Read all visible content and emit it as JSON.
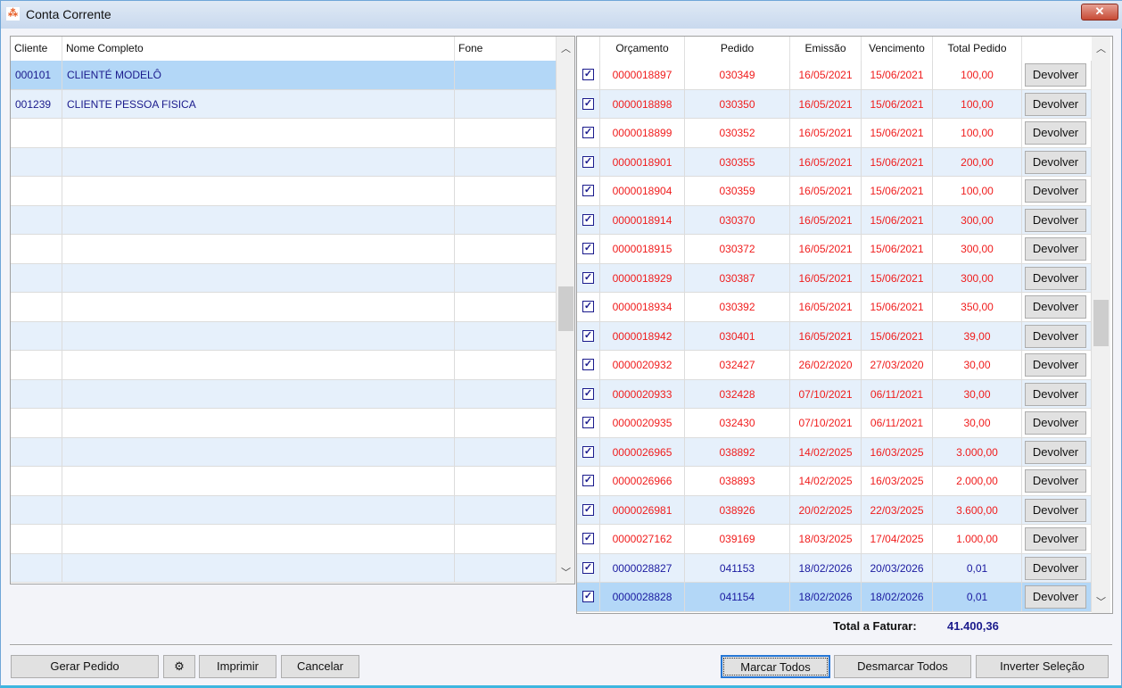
{
  "window": {
    "title": "Conta Corrente",
    "close_label": "✕"
  },
  "clients": {
    "headers": [
      "Cliente",
      "Nome Completo",
      "Fone"
    ],
    "rows": [
      {
        "code": "000101",
        "name": "CLIENTÉ MODELÔ",
        "phone": "",
        "selected": true
      },
      {
        "code": "001239",
        "name": "CLIENTE PESSOA FISICA",
        "phone": "",
        "selected": false
      }
    ],
    "empty_rows": 16
  },
  "orders": {
    "headers": [
      "",
      "Orçamento",
      "Pedido",
      "Emissão",
      "Vencimento",
      "Total Pedido",
      ""
    ],
    "button_label": "Devolver",
    "colors": {
      "red": "#f01c1c",
      "blue": "#1a1aa0"
    },
    "rows": [
      {
        "checked": true,
        "orcamento": "0000018897",
        "pedido": "030349",
        "emissao": "16/05/2021",
        "vencimento": "15/06/2021",
        "total": "100,00",
        "color": "red"
      },
      {
        "checked": true,
        "orcamento": "0000018898",
        "pedido": "030350",
        "emissao": "16/05/2021",
        "vencimento": "15/06/2021",
        "total": "100,00",
        "color": "red"
      },
      {
        "checked": true,
        "orcamento": "0000018899",
        "pedido": "030352",
        "emissao": "16/05/2021",
        "vencimento": "15/06/2021",
        "total": "100,00",
        "color": "red"
      },
      {
        "checked": true,
        "orcamento": "0000018901",
        "pedido": "030355",
        "emissao": "16/05/2021",
        "vencimento": "15/06/2021",
        "total": "200,00",
        "color": "red"
      },
      {
        "checked": true,
        "orcamento": "0000018904",
        "pedido": "030359",
        "emissao": "16/05/2021",
        "vencimento": "15/06/2021",
        "total": "100,00",
        "color": "red"
      },
      {
        "checked": true,
        "orcamento": "0000018914",
        "pedido": "030370",
        "emissao": "16/05/2021",
        "vencimento": "15/06/2021",
        "total": "300,00",
        "color": "red"
      },
      {
        "checked": true,
        "orcamento": "0000018915",
        "pedido": "030372",
        "emissao": "16/05/2021",
        "vencimento": "15/06/2021",
        "total": "300,00",
        "color": "red"
      },
      {
        "checked": true,
        "orcamento": "0000018929",
        "pedido": "030387",
        "emissao": "16/05/2021",
        "vencimento": "15/06/2021",
        "total": "300,00",
        "color": "red"
      },
      {
        "checked": true,
        "orcamento": "0000018934",
        "pedido": "030392",
        "emissao": "16/05/2021",
        "vencimento": "15/06/2021",
        "total": "350,00",
        "color": "red"
      },
      {
        "checked": true,
        "orcamento": "0000018942",
        "pedido": "030401",
        "emissao": "16/05/2021",
        "vencimento": "15/06/2021",
        "total": "39,00",
        "color": "red"
      },
      {
        "checked": true,
        "orcamento": "0000020932",
        "pedido": "032427",
        "emissao": "26/02/2020",
        "vencimento": "27/03/2020",
        "total": "30,00",
        "color": "red"
      },
      {
        "checked": true,
        "orcamento": "0000020933",
        "pedido": "032428",
        "emissao": "07/10/2021",
        "vencimento": "06/11/2021",
        "total": "30,00",
        "color": "red"
      },
      {
        "checked": true,
        "orcamento": "0000020935",
        "pedido": "032430",
        "emissao": "07/10/2021",
        "vencimento": "06/11/2021",
        "total": "30,00",
        "color": "red"
      },
      {
        "checked": true,
        "orcamento": "0000026965",
        "pedido": "038892",
        "emissao": "14/02/2025",
        "vencimento": "16/03/2025",
        "total": "3.000,00",
        "color": "red"
      },
      {
        "checked": true,
        "orcamento": "0000026966",
        "pedido": "038893",
        "emissao": "14/02/2025",
        "vencimento": "16/03/2025",
        "total": "2.000,00",
        "color": "red"
      },
      {
        "checked": true,
        "orcamento": "0000026981",
        "pedido": "038926",
        "emissao": "20/02/2025",
        "vencimento": "22/03/2025",
        "total": "3.600,00",
        "color": "red"
      },
      {
        "checked": true,
        "orcamento": "0000027162",
        "pedido": "039169",
        "emissao": "18/03/2025",
        "vencimento": "17/04/2025",
        "total": "1.000,00",
        "color": "red"
      },
      {
        "checked": true,
        "orcamento": "0000028827",
        "pedido": "041153",
        "emissao": "18/02/2026",
        "vencimento": "20/03/2026",
        "total": "0,01",
        "color": "blue"
      },
      {
        "checked": true,
        "orcamento": "0000028828",
        "pedido": "041154",
        "emissao": "18/02/2026",
        "vencimento": "18/02/2026",
        "total": "0,01",
        "color": "blue",
        "selected": true
      }
    ]
  },
  "footer": {
    "total_label": "Total a Faturar:",
    "total_value": "41.400,36"
  },
  "buttons": {
    "gerar": "Gerar Pedido",
    "settings_icon": "⚙",
    "imprimir": "Imprimir",
    "cancelar": "Cancelar",
    "marcar": "Marcar Todos",
    "desmarcar": "Desmarcar Todos",
    "inverter": "Inverter Seleção"
  }
}
